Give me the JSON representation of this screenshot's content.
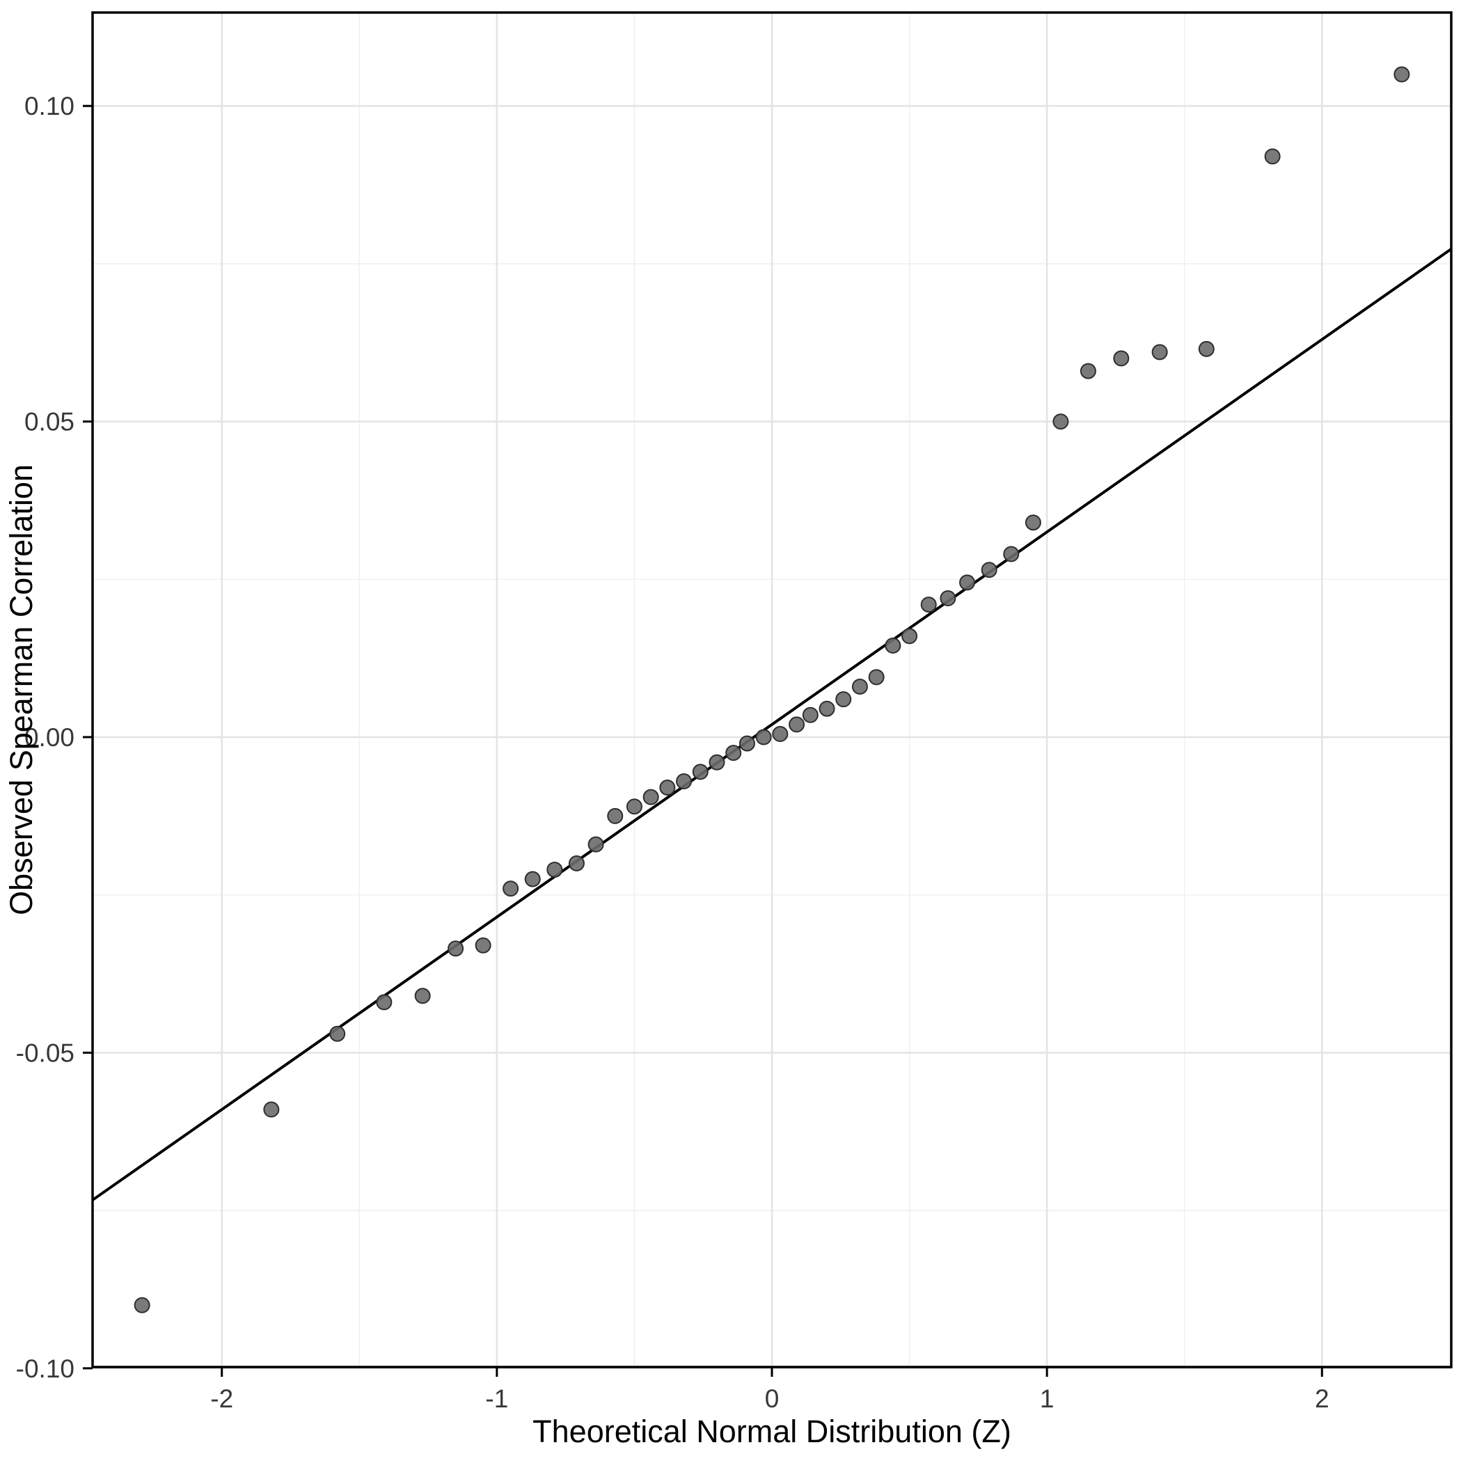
{
  "chart_data": {
    "type": "scatter",
    "subtype": "qq-plot",
    "title": "",
    "xlabel": "Theoretical Normal Distribution (Z)",
    "ylabel": "Observed Spearman Correlation",
    "xlim": [
      -2.47,
      2.47
    ],
    "ylim": [
      -0.0998,
      0.1148
    ],
    "grid": true,
    "legend_position": "none",
    "x_ticks": {
      "values": [
        -2,
        -1,
        0,
        1,
        2
      ],
      "labels": [
        "-2",
        "-1",
        "0",
        "1",
        "2"
      ]
    },
    "y_ticks": {
      "values": [
        -0.1,
        -0.05,
        0.0,
        0.05,
        0.1
      ],
      "labels": [
        "-0.10",
        "-0.05",
        "0.00",
        "0.05",
        "0.10"
      ]
    },
    "x_minor_gridlines": [
      -1.5,
      -0.5,
      0.5,
      1.5
    ],
    "y_minor_gridlines": [
      -0.075,
      -0.025,
      0.025,
      0.075
    ],
    "reference_line": {
      "kind": "qq-line",
      "slope": 0.0305,
      "intercept": 0.002
    },
    "points": [
      [
        -2.29,
        -0.09
      ],
      [
        -1.82,
        -0.059
      ],
      [
        -1.58,
        -0.047
      ],
      [
        -1.41,
        -0.042
      ],
      [
        -1.27,
        -0.041
      ],
      [
        -1.15,
        -0.0335
      ],
      [
        -1.05,
        -0.033
      ],
      [
        -0.95,
        -0.024
      ],
      [
        -0.87,
        -0.0225
      ],
      [
        -0.79,
        -0.021
      ],
      [
        -0.71,
        -0.02
      ],
      [
        -0.64,
        -0.017
      ],
      [
        -0.57,
        -0.0125
      ],
      [
        -0.5,
        -0.011
      ],
      [
        -0.44,
        -0.0095
      ],
      [
        -0.38,
        -0.008
      ],
      [
        -0.32,
        -0.007
      ],
      [
        -0.26,
        -0.0055
      ],
      [
        -0.2,
        -0.004
      ],
      [
        -0.14,
        -0.0025
      ],
      [
        -0.09,
        -0.001
      ],
      [
        -0.03,
        0.0
      ],
      [
        0.03,
        0.0005
      ],
      [
        0.09,
        0.002
      ],
      [
        0.14,
        0.0035
      ],
      [
        0.2,
        0.0045
      ],
      [
        0.26,
        0.006
      ],
      [
        0.32,
        0.008
      ],
      [
        0.38,
        0.0095
      ],
      [
        0.44,
        0.0145
      ],
      [
        0.5,
        0.016
      ],
      [
        0.57,
        0.021
      ],
      [
        0.64,
        0.022
      ],
      [
        0.71,
        0.0245
      ],
      [
        0.79,
        0.0265
      ],
      [
        0.87,
        0.029
      ],
      [
        0.95,
        0.034
      ],
      [
        1.05,
        0.05
      ],
      [
        1.15,
        0.058
      ],
      [
        1.27,
        0.06
      ],
      [
        1.41,
        0.061
      ],
      [
        1.58,
        0.0615
      ],
      [
        1.82,
        0.092
      ],
      [
        2.29,
        0.105
      ]
    ],
    "style": {
      "background": "#ffffff",
      "panel_bg": "#ffffff",
      "panel_border": "#000000",
      "grid_major": "#e4e4e4",
      "grid_minor": "#f1f1f1",
      "point_fill": "#6b6b6b",
      "point_stroke": "#2e2e2e",
      "point_opacity": 0.9,
      "point_radius": 10.5,
      "line_color": "#000000",
      "tick_color": "#000000",
      "tick_label_color": "#383838",
      "axis_title_color": "#000000"
    }
  }
}
